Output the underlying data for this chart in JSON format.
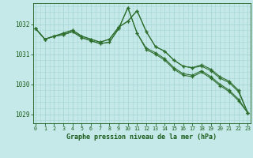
{
  "background_color": "#c5e8e8",
  "grid_color": "#a8d5d5",
  "line_color": "#2d6e2d",
  "marker_color": "#2d6e2d",
  "xlabel": "Graphe pression niveau de la mer (hPa)",
  "xlabel_color": "#1a5c1a",
  "tick_color": "#1a5c1a",
  "ylim": [
    1028.7,
    1032.7
  ],
  "xlim": [
    -0.3,
    23.3
  ],
  "yticks": [
    1029,
    1030,
    1031,
    1032
  ],
  "xticks": [
    0,
    1,
    2,
    3,
    4,
    5,
    6,
    7,
    8,
    9,
    10,
    11,
    12,
    13,
    14,
    15,
    16,
    17,
    18,
    19,
    20,
    21,
    22,
    23
  ],
  "series": [
    [
      1031.85,
      1031.5,
      1031.6,
      1031.65,
      1031.75,
      1031.55,
      1031.45,
      1031.35,
      1031.4,
      1031.85,
      1032.55,
      1031.7,
      1031.2,
      1031.05,
      1030.85,
      1030.55,
      1030.35,
      1030.3,
      1030.45,
      1030.25,
      1030.0,
      1029.8,
      1029.5,
      1029.05
    ],
    [
      1031.85,
      1031.5,
      1031.6,
      1031.65,
      1031.75,
      1031.55,
      1031.45,
      1031.35,
      1031.4,
      1031.85,
      1032.55,
      1031.7,
      1031.15,
      1031.0,
      1030.8,
      1030.5,
      1030.3,
      1030.25,
      1030.4,
      1030.2,
      1029.95,
      1029.75,
      1029.45,
      1029.05
    ],
    [
      1031.85,
      1031.5,
      1031.6,
      1031.7,
      1031.8,
      1031.6,
      1031.5,
      1031.4,
      1031.5,
      1031.9,
      1032.1,
      1032.45,
      1031.75,
      1031.25,
      1031.1,
      1030.8,
      1030.6,
      1030.55,
      1030.6,
      1030.45,
      1030.2,
      1030.05,
      1029.75,
      1029.05
    ],
    [
      1031.85,
      1031.5,
      1031.6,
      1031.7,
      1031.8,
      1031.6,
      1031.5,
      1031.4,
      1031.5,
      1031.9,
      1032.1,
      1032.45,
      1031.75,
      1031.25,
      1031.1,
      1030.8,
      1030.6,
      1030.55,
      1030.65,
      1030.5,
      1030.25,
      1030.1,
      1029.8,
      1029.05
    ]
  ]
}
